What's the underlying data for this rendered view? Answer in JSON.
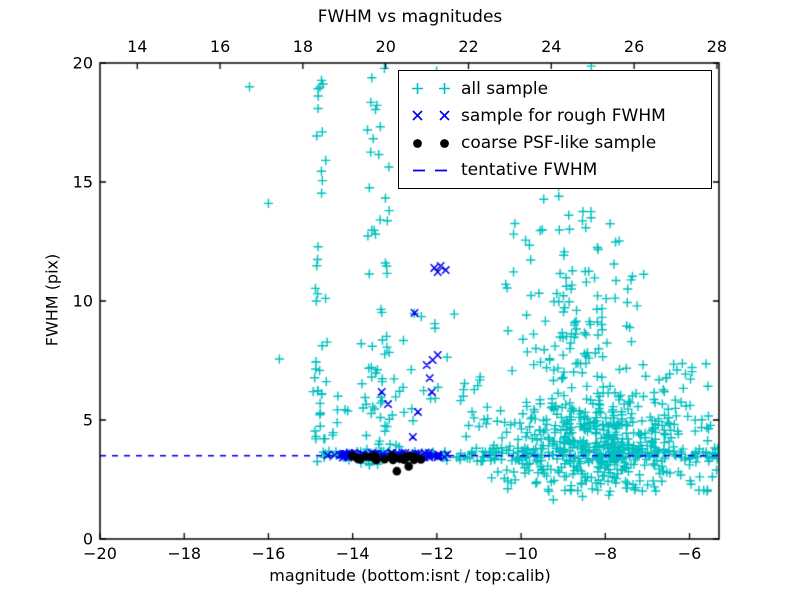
{
  "chart_data": {
    "type": "scatter",
    "title": "FWHM vs magnitudes",
    "xlabel": "magnitude (bottom:isnt / top:calib)",
    "ylabel": "FWHM (pix)",
    "xlim_bottom": [
      -20,
      -5.3
    ],
    "xlim_top": [
      13.1,
      28.05
    ],
    "ylim": [
      0,
      20
    ],
    "x_bottom_ticks": [
      -20,
      -18,
      -16,
      -14,
      -12,
      -10,
      -8,
      -6
    ],
    "x_top_ticks": [
      14,
      16,
      18,
      20,
      22,
      24,
      26,
      28
    ],
    "y_ticks": [
      0,
      5,
      10,
      15,
      20
    ],
    "grid": false,
    "legend_position": "upper right inside axes",
    "tentative_fwhm": 3.5,
    "series": [
      {
        "name": "all sample",
        "marker": "plus",
        "color": "#00bfbf",
        "points": [
          [
            -16.45,
            19.0
          ],
          [
            -16.0,
            14.1
          ],
          [
            -15.74,
            7.56
          ],
          [
            -12.05,
            19.3
          ],
          [
            -11.9,
            18.7
          ]
        ],
        "clusters": [
          {
            "x": [
              -14.95,
              -14.55
            ],
            "y": [
              3.2,
              8.5
            ],
            "n": 26
          },
          {
            "x": [
              -14.9,
              -14.6
            ],
            "y": [
              8.5,
              20.0
            ],
            "n": 14
          },
          {
            "x": [
              -14.88,
              -14.7
            ],
            "y": [
              18.6,
              19.4
            ],
            "n": 5
          },
          {
            "x": [
              -13.85,
              -13.05
            ],
            "y": [
              3.0,
              9.0
            ],
            "n": 48
          },
          {
            "x": [
              -13.8,
              -13.1
            ],
            "y": [
              9.0,
              20.0
            ],
            "n": 26
          },
          {
            "x": [
              -13.05,
              -11.4
            ],
            "y": [
              3.2,
              9.5
            ],
            "n": 22
          },
          {
            "x": [
              -12.3,
              -11.7
            ],
            "y": [
              18.5,
              19.9
            ],
            "n": 3
          },
          {
            "x": [
              -14.5,
              -13.9
            ],
            "y": [
              3.1,
              6.0
            ],
            "n": 10
          },
          {
            "x": [
              -14.7,
              -11.3
            ],
            "y": [
              3.3,
              3.7
            ],
            "n": 55
          },
          {
            "gauss": true,
            "cx": -8.3,
            "cy": 4.3,
            "sx": 1.05,
            "sy": 1.05,
            "n": 420,
            "clip": {
              "x": [
                -11.3,
                -5.31
              ],
              "y": [
                2.0,
                8.5
              ]
            }
          },
          {
            "gauss": true,
            "cx": -8.7,
            "cy": 9.3,
            "sx": 0.5,
            "sy": 2.0,
            "n": 60,
            "clip": {
              "x": [
                -10.2,
                -7.2
              ],
              "y": [
                6.0,
                15.0
              ]
            }
          },
          {
            "x": [
              -10.5,
              -7.0
            ],
            "y": [
              7.0,
              14.5
            ],
            "n": 60
          },
          {
            "x": [
              -9.3,
              -7.2
            ],
            "y": [
              14.5,
              19.6
            ],
            "n": 22
          },
          {
            "x": [
              -9.0,
              -8.3
            ],
            "y": [
              19.2,
              20.0
            ],
            "n": 8
          },
          {
            "x": [
              -11.3,
              -5.31
            ],
            "y": [
              3.25,
              3.85
            ],
            "n": 150
          },
          {
            "x": [
              -10.5,
              -5.35
            ],
            "y": [
              2.0,
              3.2
            ],
            "n": 60
          },
          {
            "x": [
              -6.8,
              -5.35
            ],
            "y": [
              4.2,
              7.5
            ],
            "n": 25
          },
          {
            "x": [
              -11.4,
              -10.6
            ],
            "y": [
              3.3,
              7.0
            ],
            "n": 18
          },
          {
            "x": [
              -9.5,
              -7.8
            ],
            "y": [
              1.6,
              2.2
            ],
            "n": 6
          }
        ]
      },
      {
        "name": "sample for rough FWHM",
        "marker": "x",
        "color": "#0000ee",
        "points": [
          [
            -12.53,
            9.5
          ],
          [
            -12.06,
            11.39
          ],
          [
            -11.91,
            11.47
          ],
          [
            -11.79,
            11.3
          ],
          [
            -11.98,
            11.22
          ],
          [
            -11.98,
            7.73
          ],
          [
            -12.1,
            7.52
          ],
          [
            -12.24,
            7.31
          ],
          [
            -12.17,
            6.76
          ],
          [
            -12.12,
            6.18
          ],
          [
            -13.31,
            6.18
          ],
          [
            -13.16,
            5.67
          ],
          [
            -12.45,
            5.34
          ],
          [
            -12.57,
            4.29
          ],
          [
            -14.6,
            3.52
          ]
        ],
        "clusters": [
          {
            "x": [
              -14.55,
              -11.75
            ],
            "y": [
              3.42,
              3.62
            ],
            "n": 70
          }
        ]
      },
      {
        "name": "coarse PSF-like sample",
        "marker": "dot",
        "color": "#000000",
        "points": [
          [
            -12.67,
            3.05
          ],
          [
            -12.95,
            2.85
          ]
        ],
        "clusters": [
          {
            "x": [
              -14.12,
              -12.28
            ],
            "y": [
              3.32,
              3.5
            ],
            "n": 24
          }
        ]
      },
      {
        "name": "tentative FWHM",
        "type": "hline",
        "y": 3.5,
        "color": "#0000ee",
        "dash": [
          6,
          6
        ]
      }
    ]
  }
}
